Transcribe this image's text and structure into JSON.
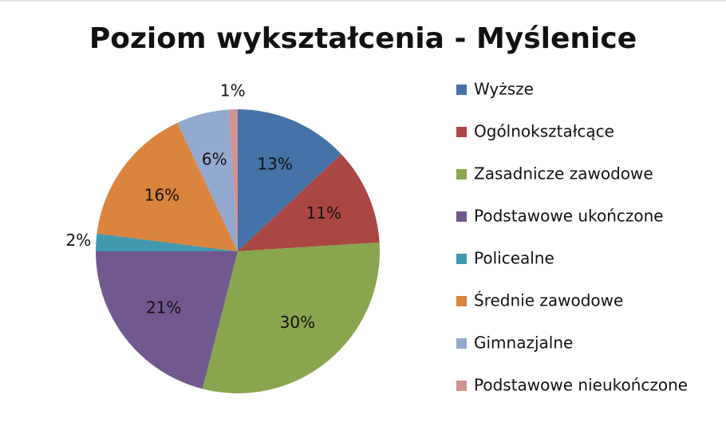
{
  "chart_data": {
    "type": "pie",
    "title": "Poziom wykształcenia - Myślenice",
    "categories": [
      "Wyższe",
      "Ogólnokształcące",
      "Zasadnicze zawodowe",
      "Podstawowe ukończone",
      "Policealne",
      "Średnie zawodowe",
      "Gimnazjalne",
      "Podstawowe nieukończone"
    ],
    "values": [
      13,
      11,
      30,
      21,
      2,
      16,
      6,
      1
    ],
    "value_labels": [
      "13%",
      "11%",
      "30%",
      "21%",
      "2%",
      "16%",
      "6%",
      "1%"
    ],
    "colors": [
      "#4572a7",
      "#aa4643",
      "#89a54e",
      "#71588f",
      "#4198af",
      "#db843d",
      "#93a9cf",
      "#d19392"
    ],
    "legend": "right"
  }
}
